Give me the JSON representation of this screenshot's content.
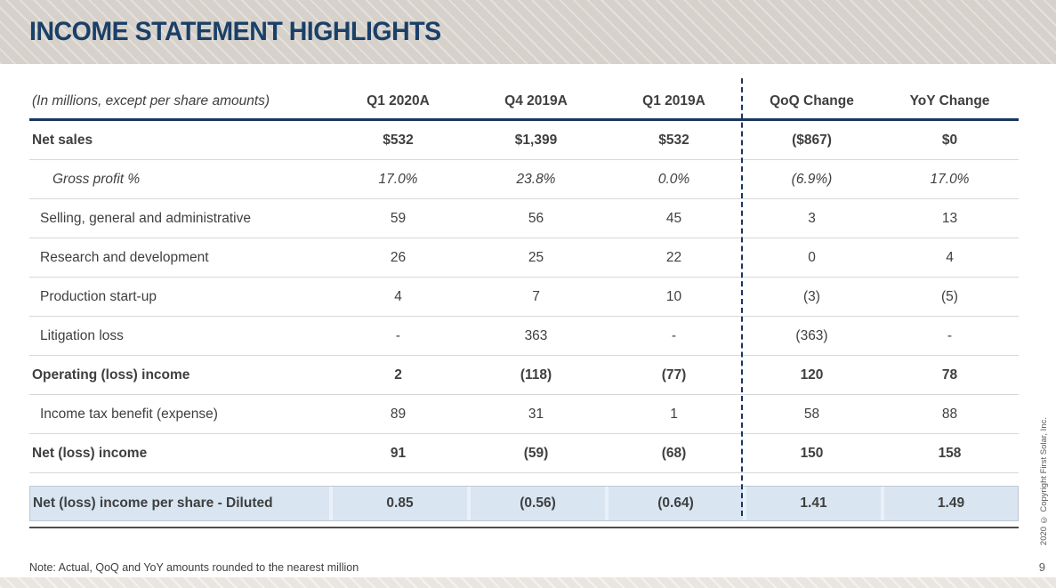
{
  "slide": {
    "title": "INCOME STATEMENT HIGHLIGHTS",
    "note": "Note: Actual, QoQ and YoY amounts rounded to the nearest million",
    "page_number": "9",
    "copyright": "2020 © Copyright First Solar, Inc."
  },
  "colors": {
    "title_navy": "#1a4068",
    "header_band_beige": "#d6d1ca",
    "table_rule_navy": "#17375e",
    "dashed_divider_navy": "#17375e",
    "row_separator_gray": "#d8d8d8",
    "body_text_gray": "#3f3f3f",
    "highlight_row_blue": "#d9e5f1",
    "bottom_rule_dark": "#4d4d4d"
  },
  "table": {
    "header": {
      "label": "(In millions, except per share amounts)",
      "columns": [
        "Q1 2020A",
        "Q4 2019A",
        "Q1 2019A",
        "QoQ Change",
        "YoY Change"
      ]
    },
    "rows": [
      {
        "label": "Net sales",
        "values": [
          "$532",
          "$1,399",
          "$532",
          "($867)",
          "$0"
        ],
        "style": "bold"
      },
      {
        "label": "Gross profit %",
        "values": [
          "17.0%",
          "23.8%",
          "0.0%",
          "(6.9%)",
          "17.0%"
        ],
        "style": "italic"
      },
      {
        "label": "Selling, general and administrative",
        "values": [
          "59",
          "56",
          "45",
          "3",
          "13"
        ],
        "style": "normal"
      },
      {
        "label": "Research and development",
        "values": [
          "26",
          "25",
          "22",
          "0",
          "4"
        ],
        "style": "normal"
      },
      {
        "label": "Production start-up",
        "values": [
          "4",
          "7",
          "10",
          "(3)",
          "(5)"
        ],
        "style": "normal"
      },
      {
        "label": "Litigation loss",
        "values": [
          "-",
          "363",
          "-",
          "(363)",
          "-"
        ],
        "style": "normal"
      },
      {
        "label": "Operating (loss) income",
        "values": [
          "2",
          "(118)",
          "(77)",
          "120",
          "78"
        ],
        "style": "bold"
      },
      {
        "label": "Income tax benefit (expense)",
        "values": [
          "89",
          "31",
          "1",
          "58",
          "88"
        ],
        "style": "normal"
      },
      {
        "label": "Net (loss) income",
        "values": [
          "91",
          "(59)",
          "(68)",
          "150",
          "158"
        ],
        "style": "bold"
      }
    ],
    "highlight_row": {
      "label": "Net (loss) income per share - Diluted",
      "values": [
        "0.85",
        "(0.56)",
        "(0.64)",
        "1.41",
        "1.49"
      ],
      "style": "bold"
    }
  }
}
